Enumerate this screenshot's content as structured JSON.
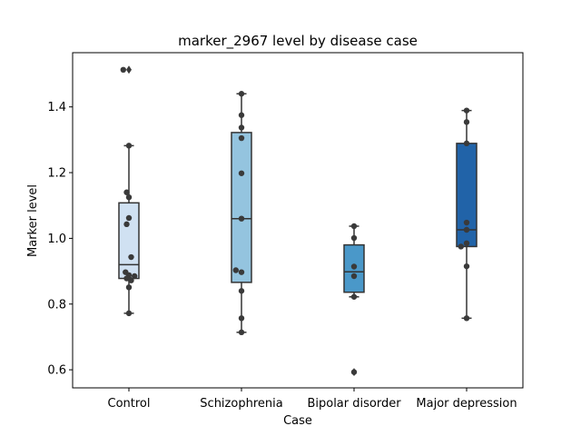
{
  "chart_data": {
    "type": "box",
    "title": "marker_2967 level by disease case",
    "xlabel": "Case",
    "ylabel": "Marker level",
    "ylim": [
      0.545,
      1.565
    ],
    "yticks": [
      0.6,
      0.8,
      1.0,
      1.2,
      1.4
    ],
    "ytick_labels": [
      "0.6",
      "0.8",
      "1.0",
      "1.2",
      "1.4"
    ],
    "grid": false,
    "categories": [
      "Control",
      "Schizophrenia",
      "Bipolar disorder",
      "Major depression"
    ],
    "colors": [
      "#d0e1f2",
      "#94c4df",
      "#4a98c9",
      "#2163a8"
    ],
    "boxes": [
      {
        "q1": 0.878,
        "median": 0.92,
        "q3": 1.108,
        "whisker_low": 0.772,
        "whisker_high": 1.282,
        "outliers": [
          1.513
        ]
      },
      {
        "q1": 0.866,
        "median": 1.06,
        "q3": 1.322,
        "whisker_low": 0.714,
        "whisker_high": 1.44,
        "outliers": []
      },
      {
        "q1": 0.836,
        "median": 0.898,
        "q3": 0.98,
        "whisker_low": 0.822,
        "whisker_high": 1.037,
        "outliers": [
          0.593
        ]
      },
      {
        "q1": 0.975,
        "median": 1.026,
        "q3": 1.289,
        "whisker_low": 0.757,
        "whisker_high": 1.389,
        "outliers": []
      }
    ],
    "points": [
      {
        "x": [
          -0.05,
          0.0,
          -0.02,
          0.0,
          0.0,
          -0.02,
          0.02,
          -0.03,
          0.0,
          0.05,
          0.0,
          0.02,
          -0.02,
          0.0,
          0.0
        ],
        "y": [
          1.513,
          1.282,
          1.14,
          1.125,
          1.062,
          1.043,
          0.943,
          0.897,
          0.878,
          0.885,
          0.888,
          0.872,
          0.878,
          0.851,
          0.772
        ]
      },
      {
        "x": [
          0.0,
          0.0,
          0.0,
          0.0,
          0.0,
          0.0,
          -0.05,
          0.0,
          0.0,
          0.0,
          0.0
        ],
        "y": [
          1.44,
          1.375,
          1.337,
          1.305,
          1.198,
          1.06,
          0.903,
          0.897,
          0.84,
          0.757,
          0.714
        ]
      },
      {
        "x": [
          0.0,
          0.0,
          0.0,
          0.0,
          0.0,
          0.0
        ],
        "y": [
          1.037,
          1.001,
          0.914,
          0.885,
          0.822,
          0.593
        ]
      },
      {
        "x": [
          0.0,
          0.0,
          0.0,
          0.0,
          0.0,
          0.0,
          -0.05,
          0.0,
          0.0
        ],
        "y": [
          1.389,
          1.354,
          1.289,
          1.048,
          1.026,
          0.985,
          0.975,
          0.915,
          0.757
        ]
      }
    ]
  }
}
